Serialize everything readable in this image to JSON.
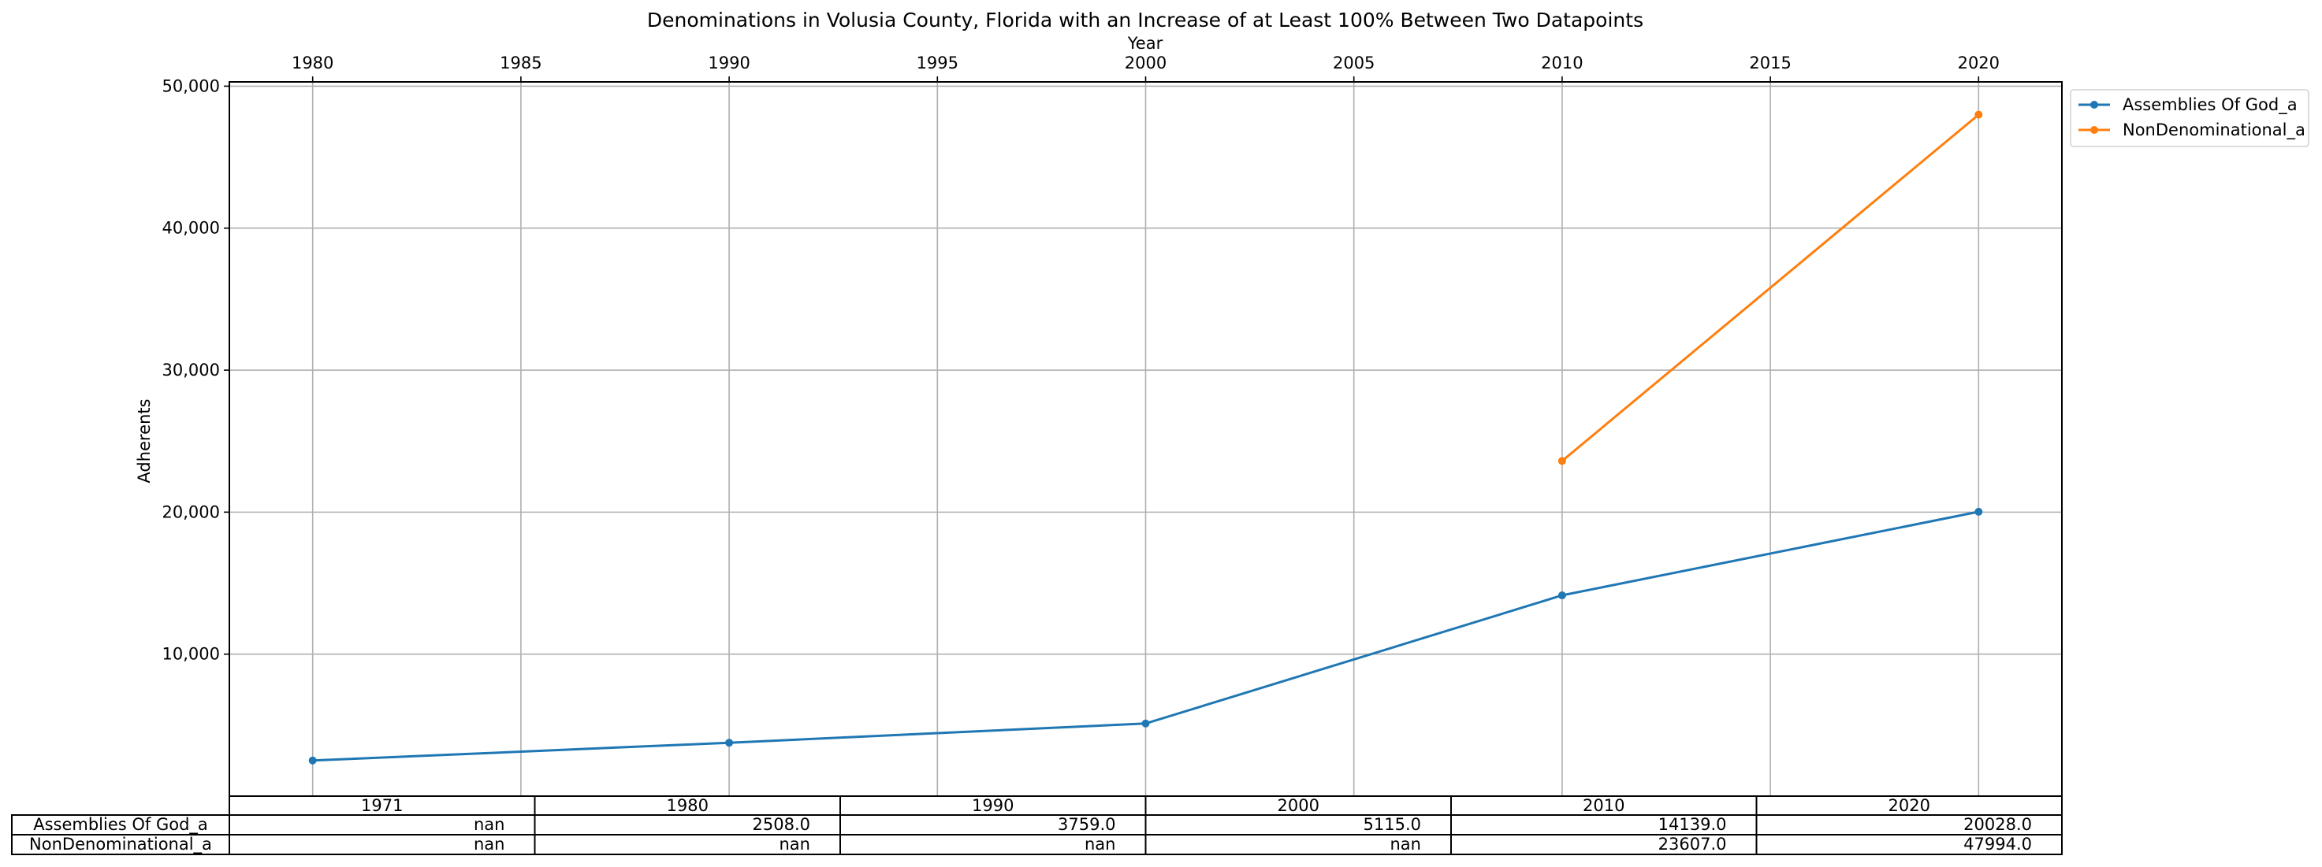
{
  "chart_data": {
    "type": "line",
    "title": "Denominations in Volusia County, Florida with an Increase of at Least 100% Between Two Datapoints",
    "xlabel": "Year",
    "ylabel": "Adherents",
    "x_ticks": [
      1980,
      1985,
      1990,
      1995,
      2000,
      2005,
      2010,
      2015,
      2020
    ],
    "y_ticks": [
      10000,
      20000,
      30000,
      40000,
      50000
    ],
    "y_tick_labels": [
      "10,000",
      "20,000",
      "30,000",
      "40,000",
      "50,000"
    ],
    "xlim": [
      1978,
      2022
    ],
    "ylim": [
      0,
      50300
    ],
    "grid": true,
    "legend_position": "outside upper-right",
    "series": [
      {
        "name": "Assemblies Of God_a",
        "color": "#1f77b4",
        "x": [
          1980,
          1990,
          2000,
          2010,
          2020
        ],
        "y": [
          2508,
          3759,
          5115,
          14139,
          20028
        ]
      },
      {
        "name": "NonDenominational_a",
        "color": "#ff7f0e",
        "x": [
          2010,
          2020
        ],
        "y": [
          23607,
          47994
        ]
      }
    ]
  },
  "table": {
    "columns": [
      "1971",
      "1980",
      "1990",
      "2000",
      "2010",
      "2020"
    ],
    "rows": [
      {
        "label": "Assemblies Of God_a",
        "values": [
          "nan",
          "2508.0",
          "3759.0",
          "5115.0",
          "14139.0",
          "20028.0"
        ]
      },
      {
        "label": "NonDenominational_a",
        "values": [
          "nan",
          "nan",
          "nan",
          "nan",
          "23607.0",
          "47994.0"
        ]
      }
    ]
  }
}
